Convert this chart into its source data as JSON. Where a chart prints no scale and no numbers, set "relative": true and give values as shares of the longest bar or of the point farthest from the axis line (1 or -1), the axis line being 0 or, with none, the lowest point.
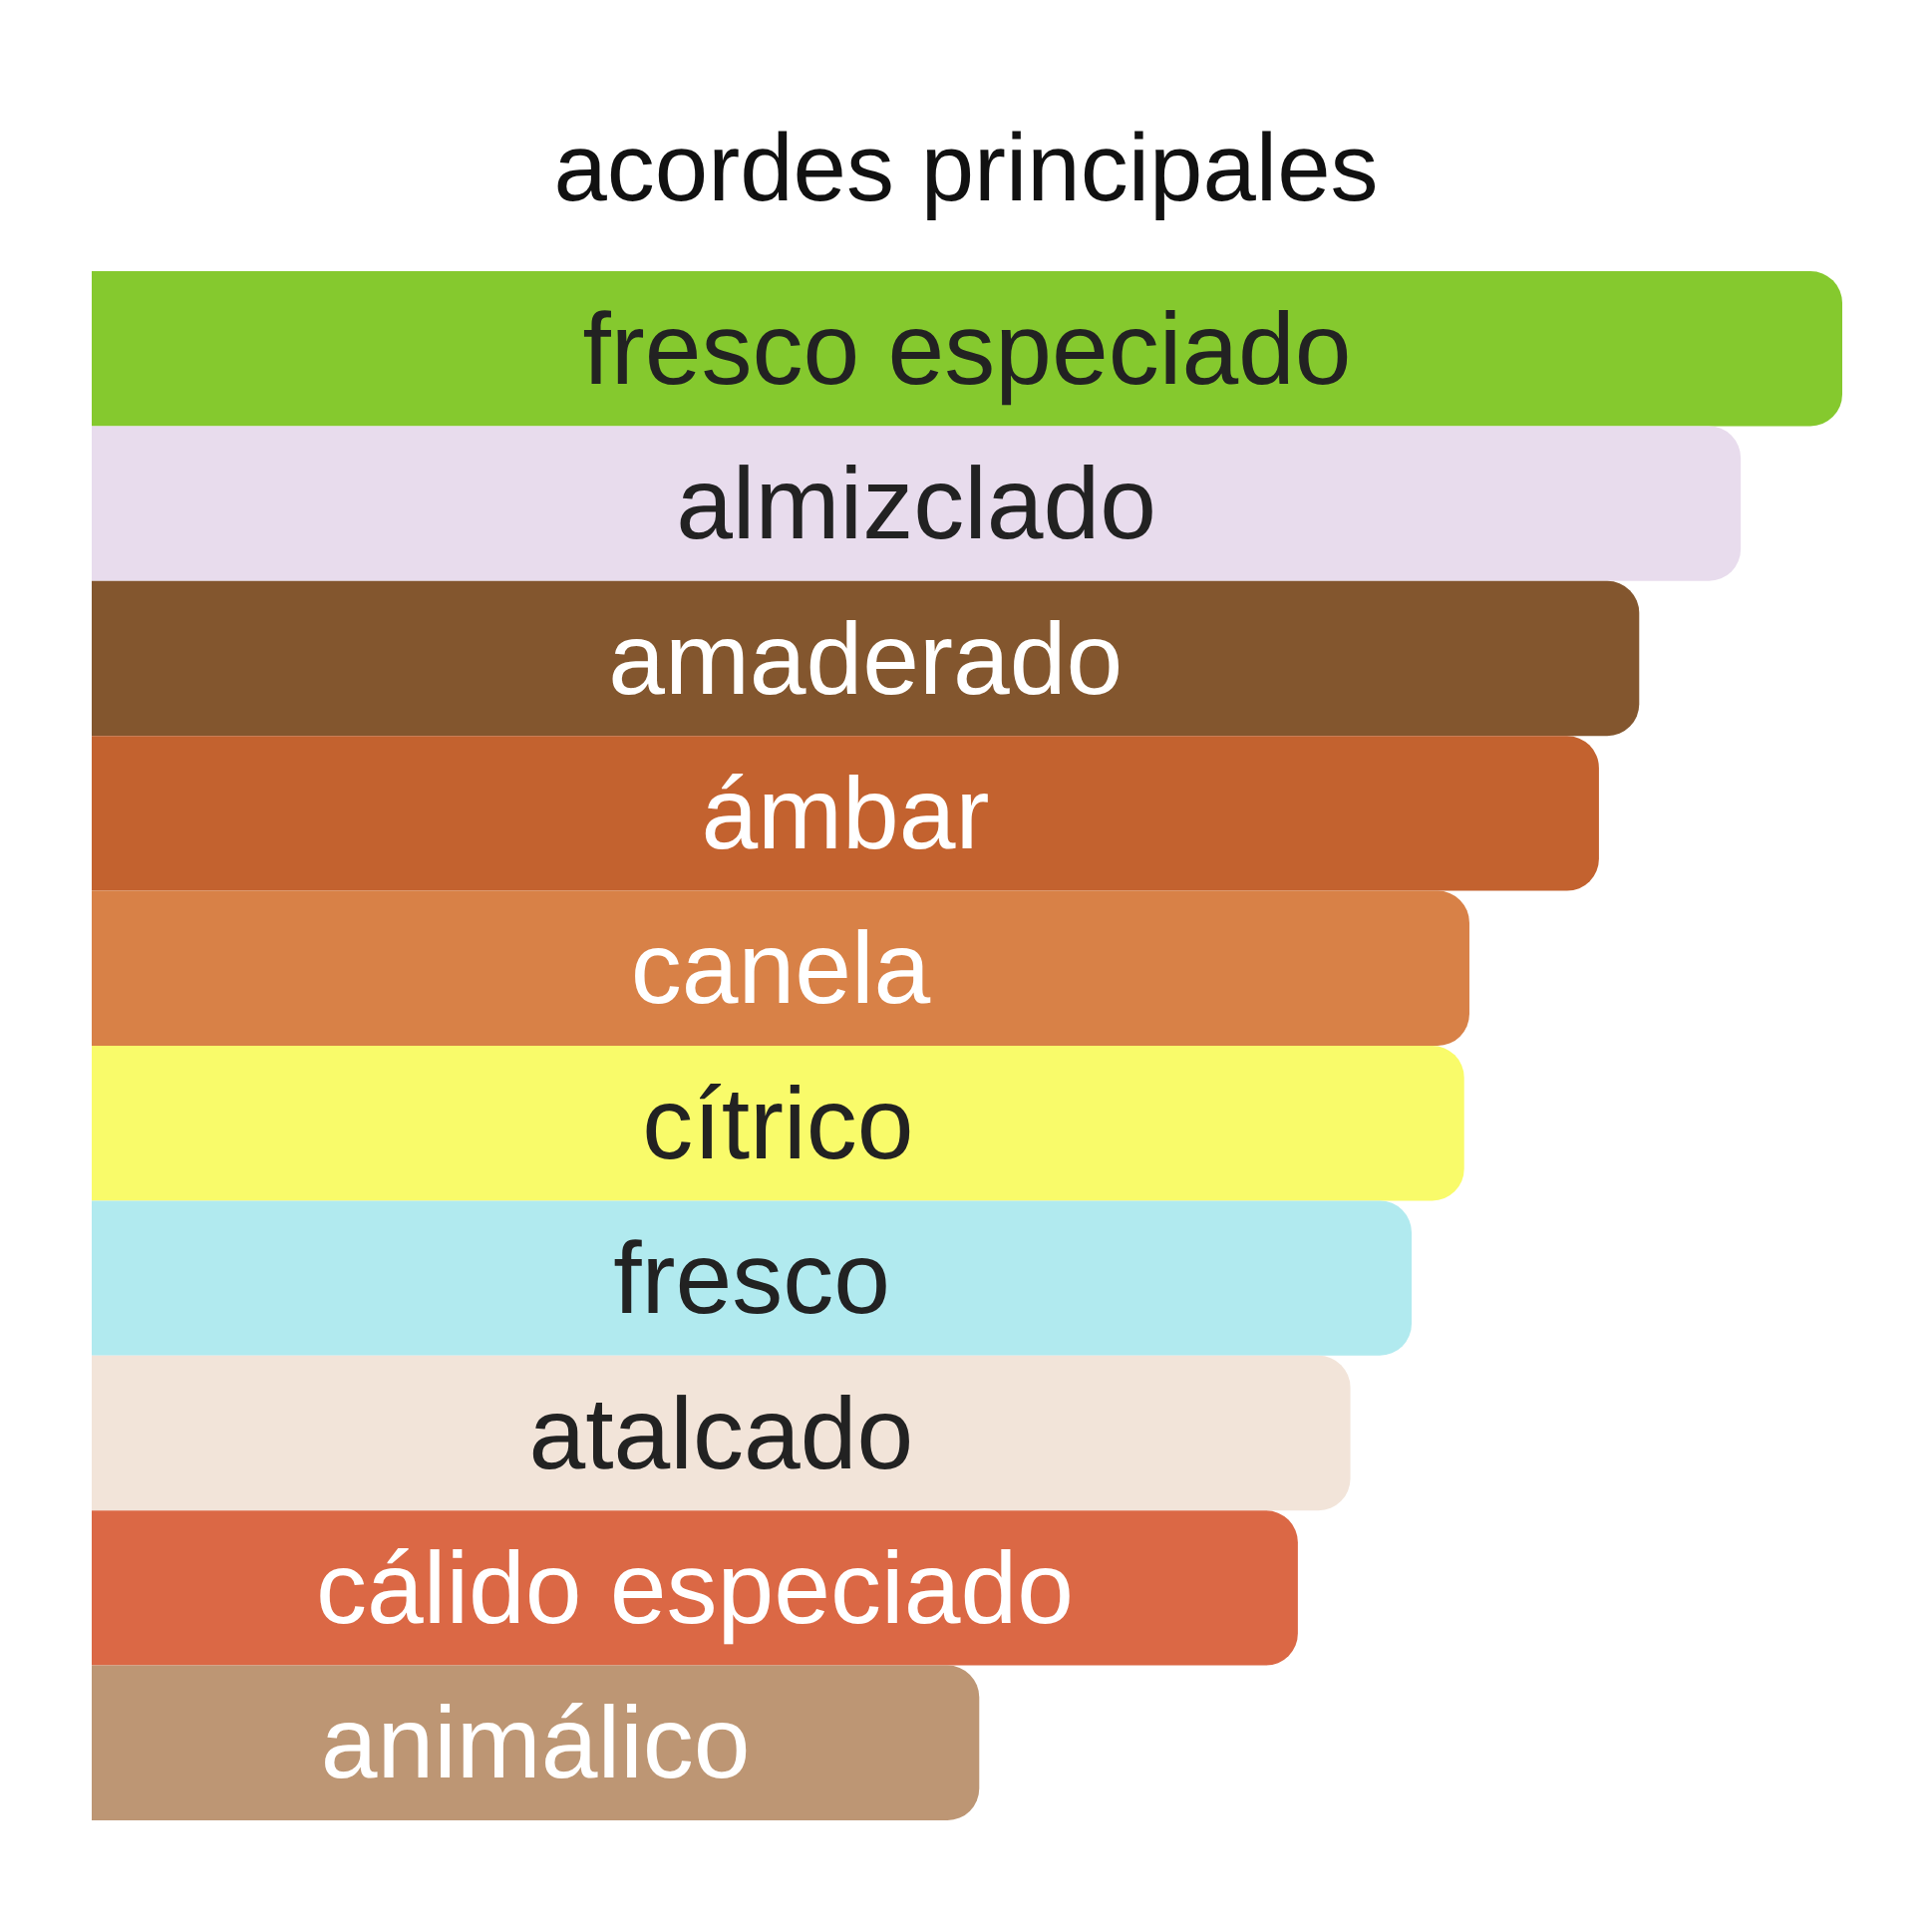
{
  "chart_data": {
    "type": "bar",
    "orientation": "horizontal",
    "relative": true,
    "title": "acordes principales",
    "categories": [
      "fresco especiado",
      "almizclado",
      "amaderado",
      "ámbar",
      "canela",
      "cítrico",
      "fresco",
      "atalcado",
      "cálido especiado",
      "animálico"
    ],
    "values": [
      1,
      0.942,
      0.884,
      0.861,
      0.787,
      0.784,
      0.754,
      0.719,
      0.689,
      0.507
    ],
    "colors": [
      "#85c92e",
      "#e8dced",
      "#83562e",
      "#c3622f",
      "#d88147",
      "#f9fb6a",
      "#b1eaef",
      "#f2e4d9",
      "#db6845",
      "#bd9674"
    ]
  }
}
